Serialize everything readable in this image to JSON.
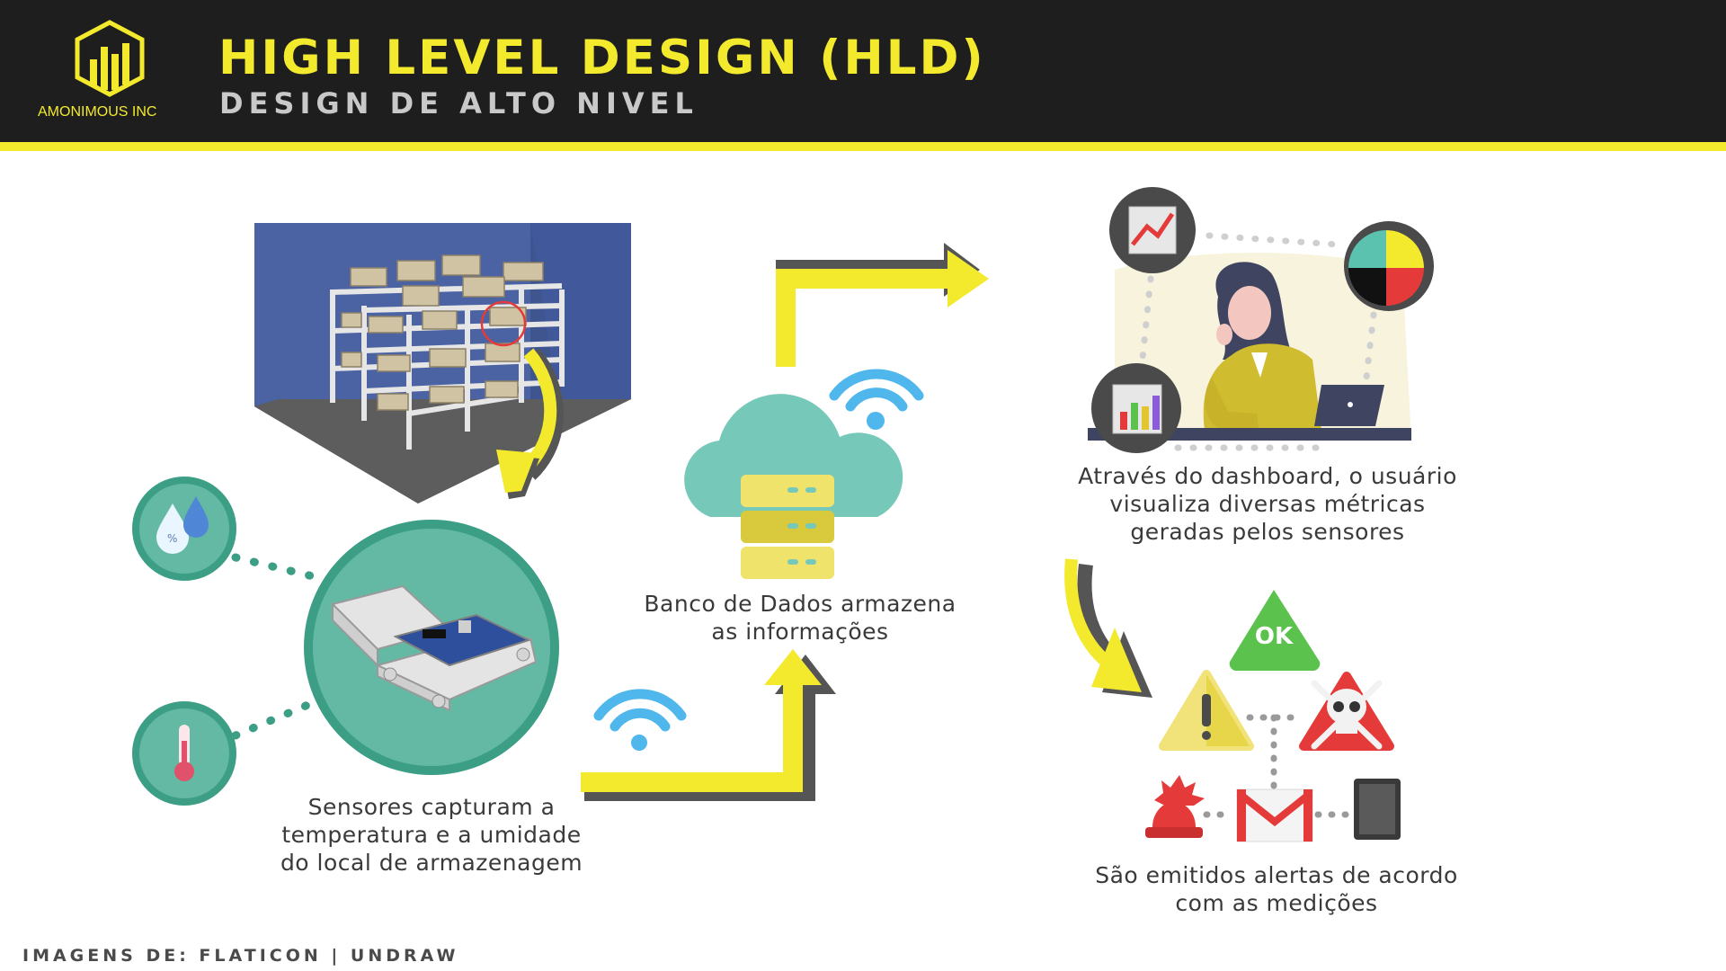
{
  "header": {
    "title": "HIGH LEVEL DESIGN (HLD)",
    "subtitle": "DESIGN DE ALTO NIVEL",
    "logo_text": "AMONIMOUS INC"
  },
  "steps": [
    {
      "id": "sensors",
      "lines": [
        "Sensores capturam a",
        "temperatura e a umidade",
        "do local de armazenagem"
      ]
    },
    {
      "id": "database",
      "lines": [
        "Banco de Dados armazena",
        "as informações"
      ]
    },
    {
      "id": "dashboard",
      "lines": [
        "Através do dashboard, o usuário",
        "visualiza diversas métricas",
        "geradas pelos sensores"
      ]
    },
    {
      "id": "alerts",
      "lines": [
        "São emitidos alertas de acordo",
        "com as medições"
      ]
    }
  ],
  "alert_badge": "OK",
  "footer": "IMAGENS DE: FLATICON | UNDRAW",
  "colors": {
    "header_bg": "#1e1e1e",
    "accent_yellow": "#f3e92d",
    "teal": "#3d9e86",
    "teal_light": "#63b9a4",
    "wifi_blue": "#4fb7ec",
    "alert_red": "#e53a3a",
    "ok_green": "#5cc24e"
  }
}
